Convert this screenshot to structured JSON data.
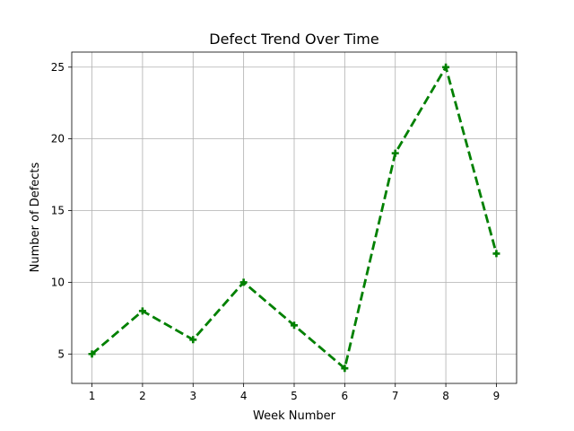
{
  "chart_data": {
    "type": "line",
    "title": "Defect Trend Over Time",
    "xlabel": "Week Number",
    "ylabel": "Number of Defects",
    "x": [
      1,
      2,
      3,
      4,
      5,
      6,
      7,
      8,
      9
    ],
    "series": [
      {
        "values": [
          5,
          8,
          6,
          10,
          7,
          4,
          19,
          25,
          12
        ],
        "color": "#008000",
        "line_style": "dashed",
        "marker": "plus"
      }
    ],
    "xlim": [
      0.6,
      9.4
    ],
    "ylim": [
      2.95,
      26.05
    ],
    "xticks": [
      "1",
      "2",
      "3",
      "4",
      "5",
      "6",
      "7",
      "8",
      "9"
    ],
    "yticks": [
      "5",
      "10",
      "15",
      "20",
      "25"
    ],
    "grid": true,
    "legend": "none"
  }
}
